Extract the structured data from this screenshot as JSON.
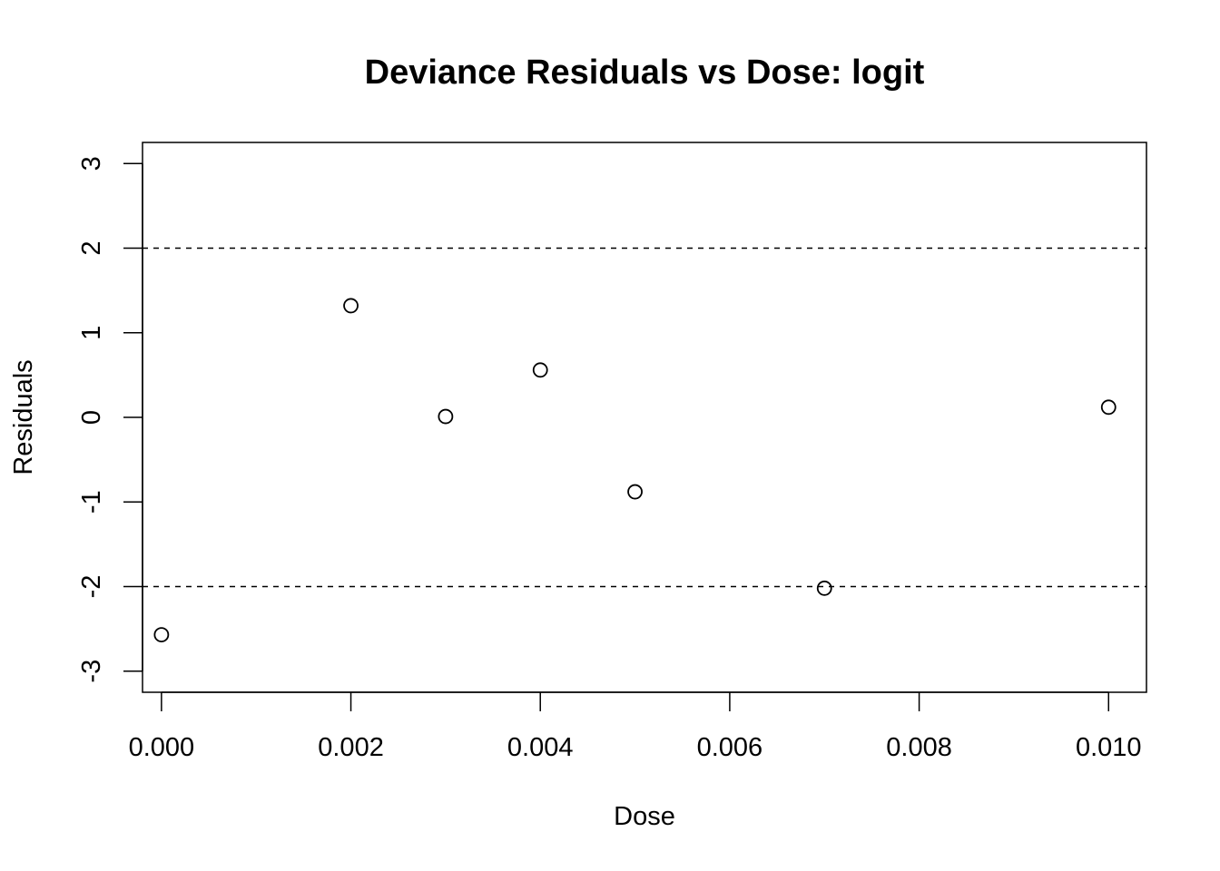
{
  "chart_data": {
    "type": "scatter",
    "title": "Deviance Residuals vs Dose: logit",
    "xlabel": "Dose",
    "ylabel": "Residuals",
    "xlim": [
      -0.0002,
      0.0104
    ],
    "ylim": [
      -3.25,
      3.25
    ],
    "xticks": [
      0.0,
      0.002,
      0.004,
      0.006,
      0.008,
      0.01
    ],
    "xtick_labels": [
      "0.000",
      "0.002",
      "0.004",
      "0.006",
      "0.008",
      "0.010"
    ],
    "yticks": [
      -3,
      -2,
      -1,
      0,
      1,
      2,
      3
    ],
    "ytick_labels": [
      "-3",
      "-2",
      "-1",
      "0",
      "1",
      "2",
      "3"
    ],
    "reference_lines": [
      2,
      -2
    ],
    "grid": false,
    "series": [
      {
        "x": [
          0.0,
          0.002,
          0.003,
          0.004,
          0.005,
          0.007,
          0.01
        ],
        "y": [
          -2.57,
          1.32,
          0.01,
          0.56,
          -0.88,
          -2.02,
          0.12
        ]
      }
    ]
  }
}
